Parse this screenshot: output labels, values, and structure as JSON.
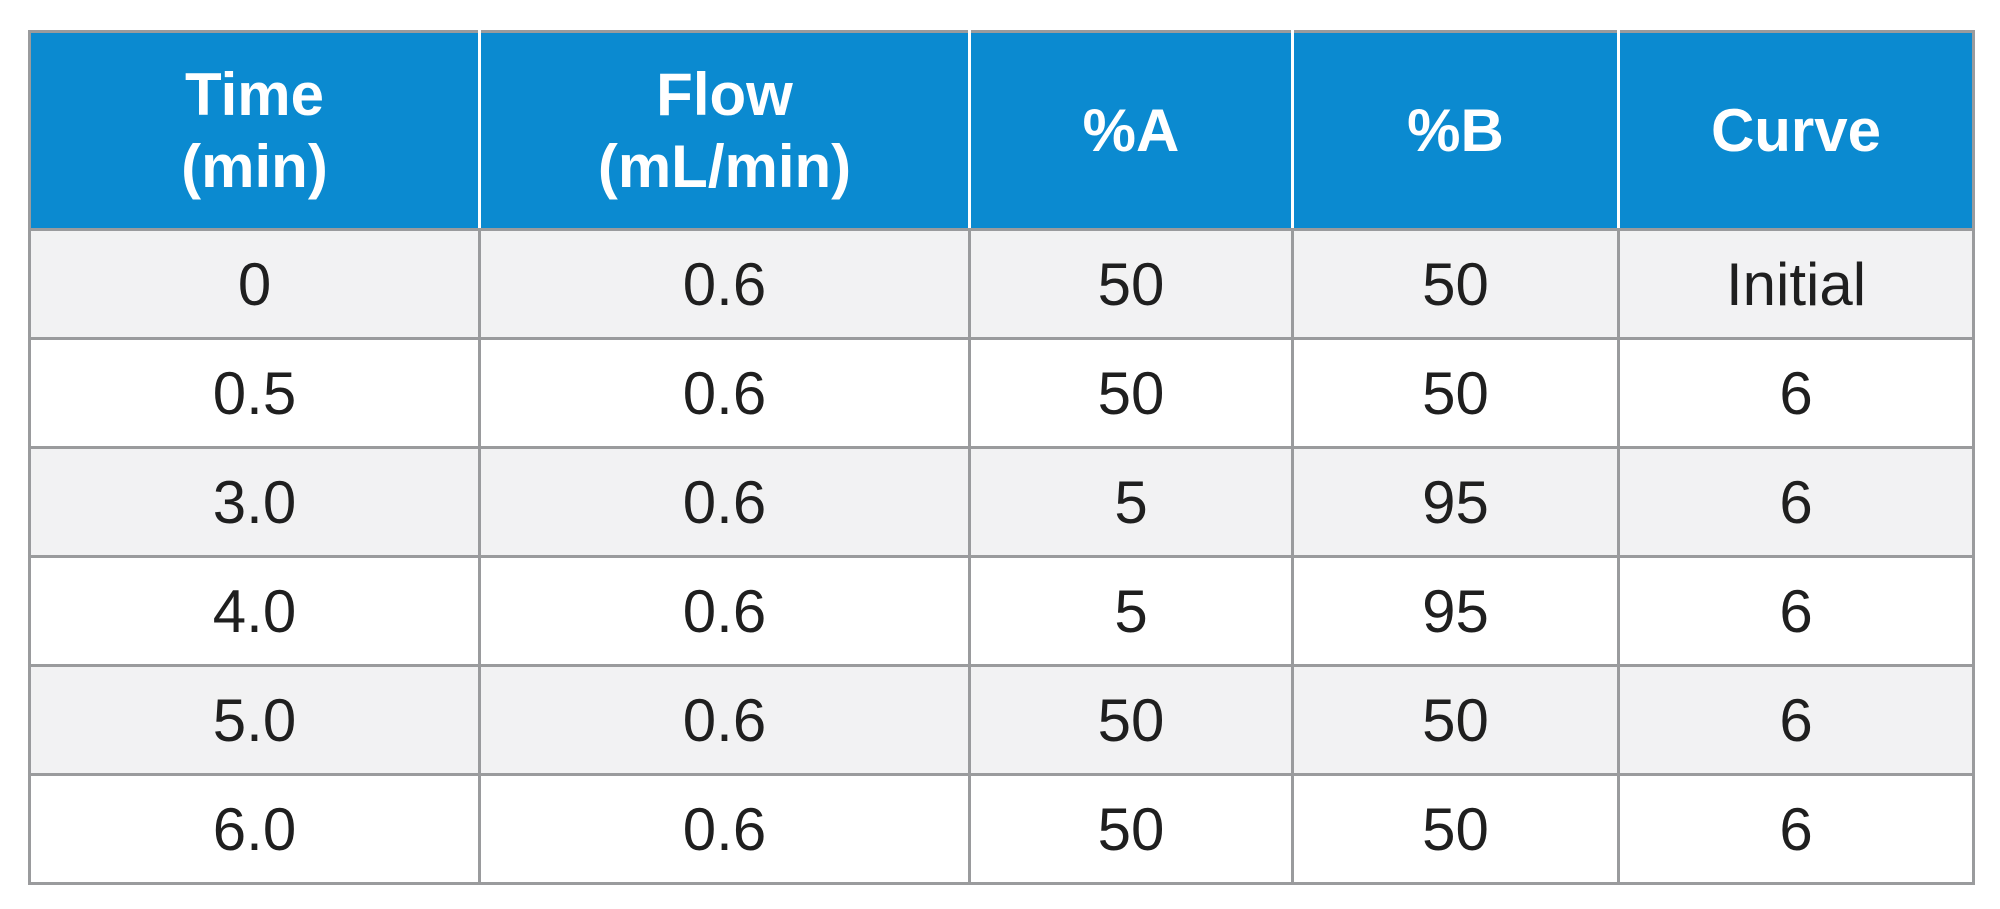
{
  "table": {
    "header_bg": "#0b8ad0",
    "shaded_row_bg": "#f2f2f3",
    "columns": [
      {
        "line1": "Time",
        "line2": "(min)"
      },
      {
        "line1": "Flow",
        "line2": "(mL/min)"
      },
      {
        "line1": "%A",
        "line2": ""
      },
      {
        "line1": "%B",
        "line2": ""
      },
      {
        "line1": "Curve",
        "line2": ""
      }
    ],
    "rows": [
      [
        "0",
        "0.6",
        "50",
        "50",
        "Initial"
      ],
      [
        "0.5",
        "0.6",
        "50",
        "50",
        "6"
      ],
      [
        "3.0",
        "0.6",
        "5",
        "95",
        "6"
      ],
      [
        "4.0",
        "0.6",
        "5",
        "95",
        "6"
      ],
      [
        "5.0",
        "0.6",
        "50",
        "50",
        "6"
      ],
      [
        "6.0",
        "0.6",
        "50",
        "50",
        "6"
      ]
    ]
  }
}
